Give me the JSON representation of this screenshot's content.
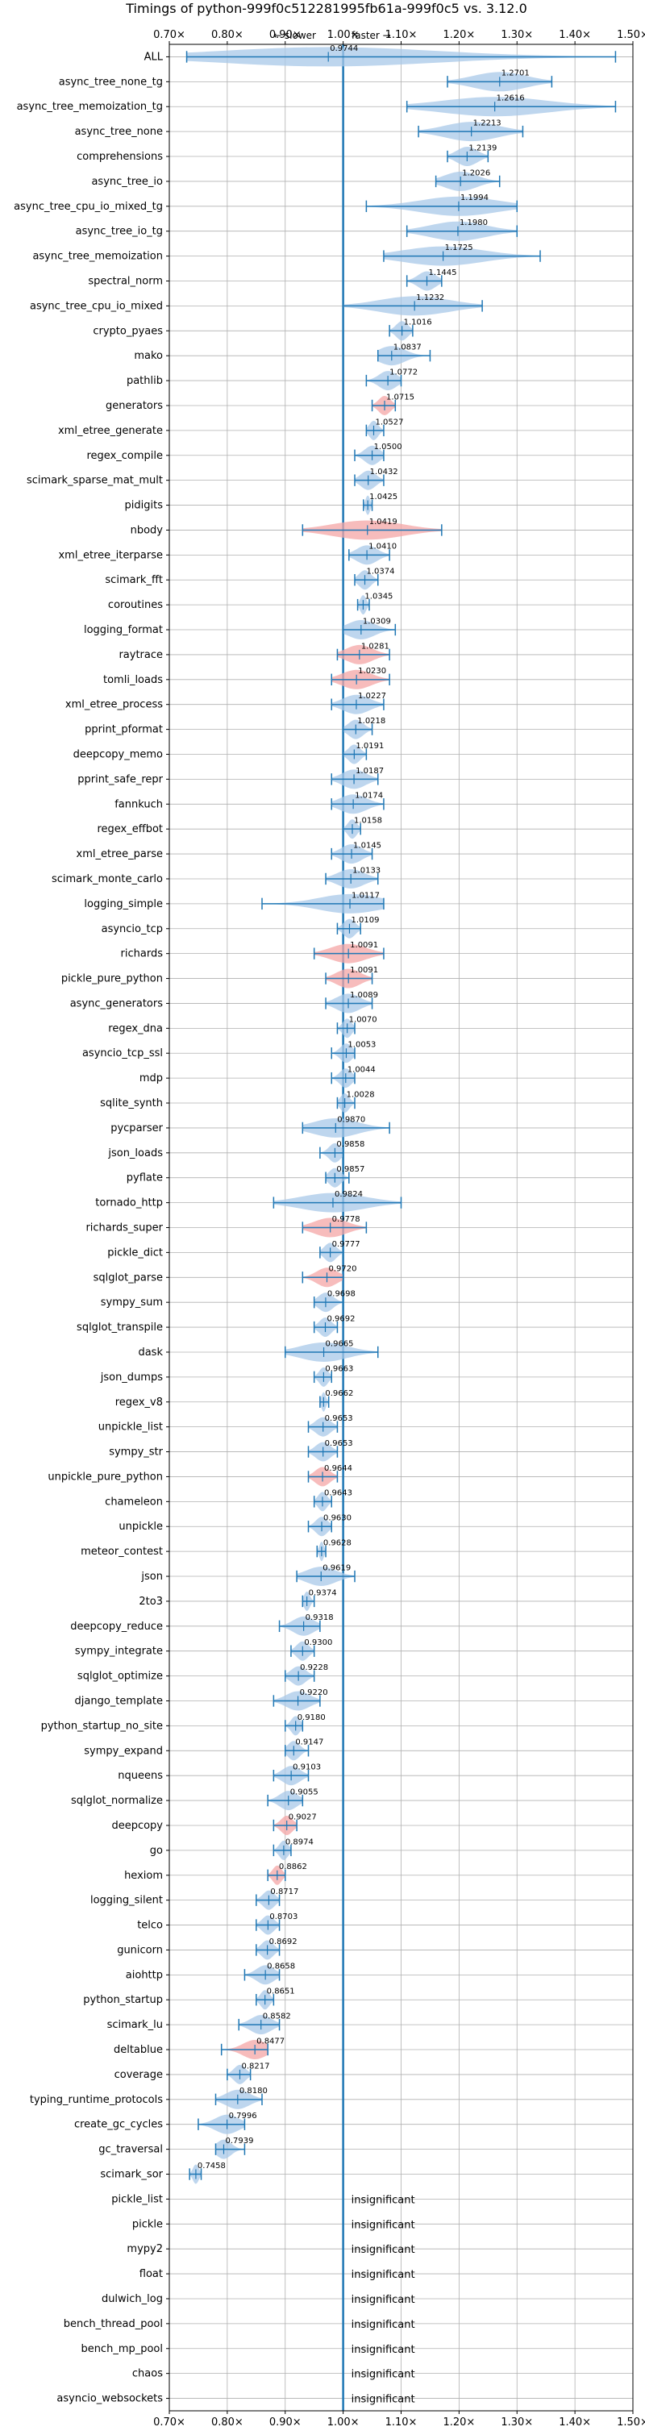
{
  "chart_data": {
    "type": "violin",
    "title": "Timings of python-999f0c512281995fb61a-999f0c5 vs. 3.12.0",
    "annotation_left": "← slower",
    "annotation_right": "faster →",
    "xlim": [
      0.7,
      1.5
    ],
    "xticks": [
      0.7,
      0.8,
      0.9,
      1.0,
      1.1,
      1.2,
      1.3,
      1.4,
      1.5
    ],
    "xtick_labels": [
      "0.70×",
      "0.80×",
      "0.90×",
      "1.00×",
      "1.10×",
      "1.20×",
      "1.30×",
      "1.40×",
      "1.50×"
    ],
    "reference_line": 1.0,
    "grid": true,
    "colors": {
      "faster": "#a8c8e8",
      "slower": "#f4a6a6",
      "line": "#1f77b4"
    },
    "insignificant_text": "insignificant",
    "benchmarks": [
      {
        "name": "ALL",
        "value": 0.9744,
        "min": 0.73,
        "max": 1.47
      },
      {
        "name": "async_tree_none_tg",
        "value": 1.2701,
        "min": 1.18,
        "max": 1.36
      },
      {
        "name": "async_tree_memoization_tg",
        "value": 1.2616,
        "min": 1.11,
        "max": 1.47
      },
      {
        "name": "async_tree_none",
        "value": 1.2213,
        "min": 1.13,
        "max": 1.31
      },
      {
        "name": "comprehensions",
        "value": 1.2139,
        "min": 1.18,
        "max": 1.25
      },
      {
        "name": "async_tree_io",
        "value": 1.2026,
        "min": 1.16,
        "max": 1.27
      },
      {
        "name": "async_tree_cpu_io_mixed_tg",
        "value": 1.1994,
        "min": 1.04,
        "max": 1.3
      },
      {
        "name": "async_tree_io_tg",
        "value": 1.198,
        "min": 1.11,
        "max": 1.3
      },
      {
        "name": "async_tree_memoization",
        "value": 1.1725,
        "min": 1.07,
        "max": 1.34
      },
      {
        "name": "spectral_norm",
        "value": 1.1445,
        "min": 1.11,
        "max": 1.17
      },
      {
        "name": "async_tree_cpu_io_mixed",
        "value": 1.1232,
        "min": 1.0,
        "max": 1.24
      },
      {
        "name": "crypto_pyaes",
        "value": 1.1016,
        "min": 1.08,
        "max": 1.12
      },
      {
        "name": "mako",
        "value": 1.0837,
        "min": 1.06,
        "max": 1.15
      },
      {
        "name": "pathlib",
        "value": 1.0772,
        "min": 1.04,
        "max": 1.1
      },
      {
        "name": "generators",
        "value": 1.0715,
        "min": 1.05,
        "max": 1.09
      },
      {
        "name": "xml_etree_generate",
        "value": 1.0527,
        "min": 1.04,
        "max": 1.07
      },
      {
        "name": "regex_compile",
        "value": 1.05,
        "min": 1.02,
        "max": 1.07
      },
      {
        "name": "scimark_sparse_mat_mult",
        "value": 1.0432,
        "min": 1.02,
        "max": 1.07
      },
      {
        "name": "pidigits",
        "value": 1.0425,
        "min": 1.035,
        "max": 1.05
      },
      {
        "name": "nbody",
        "value": 1.0419,
        "min": 0.93,
        "max": 1.17
      },
      {
        "name": "xml_etree_iterparse",
        "value": 1.041,
        "min": 1.01,
        "max": 1.08
      },
      {
        "name": "scimark_fft",
        "value": 1.0374,
        "min": 1.02,
        "max": 1.06
      },
      {
        "name": "coroutines",
        "value": 1.0345,
        "min": 1.025,
        "max": 1.045
      },
      {
        "name": "logging_format",
        "value": 1.0309,
        "min": 1.0,
        "max": 1.09
      },
      {
        "name": "raytrace",
        "value": 1.0281,
        "min": 0.99,
        "max": 1.08
      },
      {
        "name": "tomli_loads",
        "value": 1.023,
        "min": 0.98,
        "max": 1.08
      },
      {
        "name": "xml_etree_process",
        "value": 1.0227,
        "min": 0.98,
        "max": 1.07
      },
      {
        "name": "pprint_pformat",
        "value": 1.0218,
        "min": 1.0,
        "max": 1.05
      },
      {
        "name": "deepcopy_memo",
        "value": 1.0191,
        "min": 1.0,
        "max": 1.04
      },
      {
        "name": "pprint_safe_repr",
        "value": 1.0187,
        "min": 0.98,
        "max": 1.06
      },
      {
        "name": "fannkuch",
        "value": 1.0174,
        "min": 0.98,
        "max": 1.07
      },
      {
        "name": "regex_effbot",
        "value": 1.0158,
        "min": 1.0,
        "max": 1.03
      },
      {
        "name": "xml_etree_parse",
        "value": 1.0145,
        "min": 0.98,
        "max": 1.05
      },
      {
        "name": "scimark_monte_carlo",
        "value": 1.0133,
        "min": 0.97,
        "max": 1.06
      },
      {
        "name": "logging_simple",
        "value": 1.0117,
        "min": 0.86,
        "max": 1.07
      },
      {
        "name": "asyncio_tcp",
        "value": 1.0109,
        "min": 0.99,
        "max": 1.03
      },
      {
        "name": "richards",
        "value": 1.0091,
        "min": 0.95,
        "max": 1.07
      },
      {
        "name": "pickle_pure_python",
        "value": 1.0091,
        "min": 0.97,
        "max": 1.05
      },
      {
        "name": "async_generators",
        "value": 1.0089,
        "min": 0.97,
        "max": 1.05
      },
      {
        "name": "regex_dna",
        "value": 1.007,
        "min": 0.99,
        "max": 1.02
      },
      {
        "name": "asyncio_tcp_ssl",
        "value": 1.0053,
        "min": 0.98,
        "max": 1.02
      },
      {
        "name": "mdp",
        "value": 1.0044,
        "min": 0.98,
        "max": 1.02
      },
      {
        "name": "sqlite_synth",
        "value": 1.0028,
        "min": 0.99,
        "max": 1.02
      },
      {
        "name": "pycparser",
        "value": 0.987,
        "min": 0.93,
        "max": 1.08
      },
      {
        "name": "json_loads",
        "value": 0.9858,
        "min": 0.96,
        "max": 1.0
      },
      {
        "name": "pyflate",
        "value": 0.9857,
        "min": 0.97,
        "max": 1.01
      },
      {
        "name": "tornado_http",
        "value": 0.9824,
        "min": 0.88,
        "max": 1.1
      },
      {
        "name": "richards_super",
        "value": 0.9778,
        "min": 0.93,
        "max": 1.04
      },
      {
        "name": "pickle_dict",
        "value": 0.9777,
        "min": 0.96,
        "max": 1.0
      },
      {
        "name": "sqlglot_parse",
        "value": 0.972,
        "min": 0.93,
        "max": 1.0
      },
      {
        "name": "sympy_sum",
        "value": 0.9698,
        "min": 0.95,
        "max": 1.0
      },
      {
        "name": "sqlglot_transpile",
        "value": 0.9692,
        "min": 0.95,
        "max": 0.99
      },
      {
        "name": "dask",
        "value": 0.9665,
        "min": 0.9,
        "max": 1.06
      },
      {
        "name": "json_dumps",
        "value": 0.9663,
        "min": 0.95,
        "max": 0.98
      },
      {
        "name": "regex_v8",
        "value": 0.9662,
        "min": 0.96,
        "max": 0.975
      },
      {
        "name": "unpickle_list",
        "value": 0.9653,
        "min": 0.94,
        "max": 0.99
      },
      {
        "name": "sympy_str",
        "value": 0.9653,
        "min": 0.94,
        "max": 0.99
      },
      {
        "name": "unpickle_pure_python",
        "value": 0.9644,
        "min": 0.94,
        "max": 0.99
      },
      {
        "name": "chameleon",
        "value": 0.9643,
        "min": 0.95,
        "max": 0.98
      },
      {
        "name": "unpickle",
        "value": 0.963,
        "min": 0.94,
        "max": 0.98
      },
      {
        "name": "meteor_contest",
        "value": 0.9628,
        "min": 0.955,
        "max": 0.97
      },
      {
        "name": "json",
        "value": 0.9619,
        "min": 0.92,
        "max": 1.02
      },
      {
        "name": "2to3",
        "value": 0.9374,
        "min": 0.93,
        "max": 0.95
      },
      {
        "name": "deepcopy_reduce",
        "value": 0.9318,
        "min": 0.89,
        "max": 0.96
      },
      {
        "name": "sympy_integrate",
        "value": 0.93,
        "min": 0.91,
        "max": 0.95
      },
      {
        "name": "sqlglot_optimize",
        "value": 0.9228,
        "min": 0.9,
        "max": 0.95
      },
      {
        "name": "django_template",
        "value": 0.922,
        "min": 0.88,
        "max": 0.96
      },
      {
        "name": "python_startup_no_site",
        "value": 0.918,
        "min": 0.9,
        "max": 0.93
      },
      {
        "name": "sympy_expand",
        "value": 0.9147,
        "min": 0.9,
        "max": 0.94
      },
      {
        "name": "nqueens",
        "value": 0.9103,
        "min": 0.88,
        "max": 0.94
      },
      {
        "name": "sqlglot_normalize",
        "value": 0.9055,
        "min": 0.87,
        "max": 0.93
      },
      {
        "name": "deepcopy",
        "value": 0.9027,
        "min": 0.88,
        "max": 0.92
      },
      {
        "name": "go",
        "value": 0.8974,
        "min": 0.88,
        "max": 0.91
      },
      {
        "name": "hexiom",
        "value": 0.8862,
        "min": 0.87,
        "max": 0.9
      },
      {
        "name": "logging_silent",
        "value": 0.8717,
        "min": 0.85,
        "max": 0.89
      },
      {
        "name": "telco",
        "value": 0.8703,
        "min": 0.85,
        "max": 0.89
      },
      {
        "name": "gunicorn",
        "value": 0.8692,
        "min": 0.85,
        "max": 0.89
      },
      {
        "name": "aiohttp",
        "value": 0.8658,
        "min": 0.83,
        "max": 0.89
      },
      {
        "name": "python_startup",
        "value": 0.8651,
        "min": 0.85,
        "max": 0.88
      },
      {
        "name": "scimark_lu",
        "value": 0.8582,
        "min": 0.82,
        "max": 0.89
      },
      {
        "name": "deltablue",
        "value": 0.8477,
        "min": 0.79,
        "max": 0.87
      },
      {
        "name": "coverage",
        "value": 0.8217,
        "min": 0.8,
        "max": 0.84
      },
      {
        "name": "typing_runtime_protocols",
        "value": 0.818,
        "min": 0.78,
        "max": 0.86
      },
      {
        "name": "create_gc_cycles",
        "value": 0.7996,
        "min": 0.75,
        "max": 0.83
      },
      {
        "name": "gc_traversal",
        "value": 0.7939,
        "min": 0.78,
        "max": 0.83
      },
      {
        "name": "scimark_sor",
        "value": 0.7458,
        "min": 0.735,
        "max": 0.755
      },
      {
        "name": "pickle_list",
        "value": null
      },
      {
        "name": "pickle",
        "value": null
      },
      {
        "name": "mypy2",
        "value": null
      },
      {
        "name": "float",
        "value": null
      },
      {
        "name": "dulwich_log",
        "value": null
      },
      {
        "name": "bench_thread_pool",
        "value": null
      },
      {
        "name": "bench_mp_pool",
        "value": null
      },
      {
        "name": "chaos",
        "value": null
      },
      {
        "name": "asyncio_websockets",
        "value": null
      }
    ],
    "slower_highlighted": [
      "generators",
      "nbody",
      "raytrace",
      "tomli_loads",
      "richards",
      "pickle_pure_python",
      "richards_super",
      "sqlglot_parse",
      "unpickle_pure_python",
      "deepcopy",
      "hexiom",
      "deltablue"
    ]
  }
}
